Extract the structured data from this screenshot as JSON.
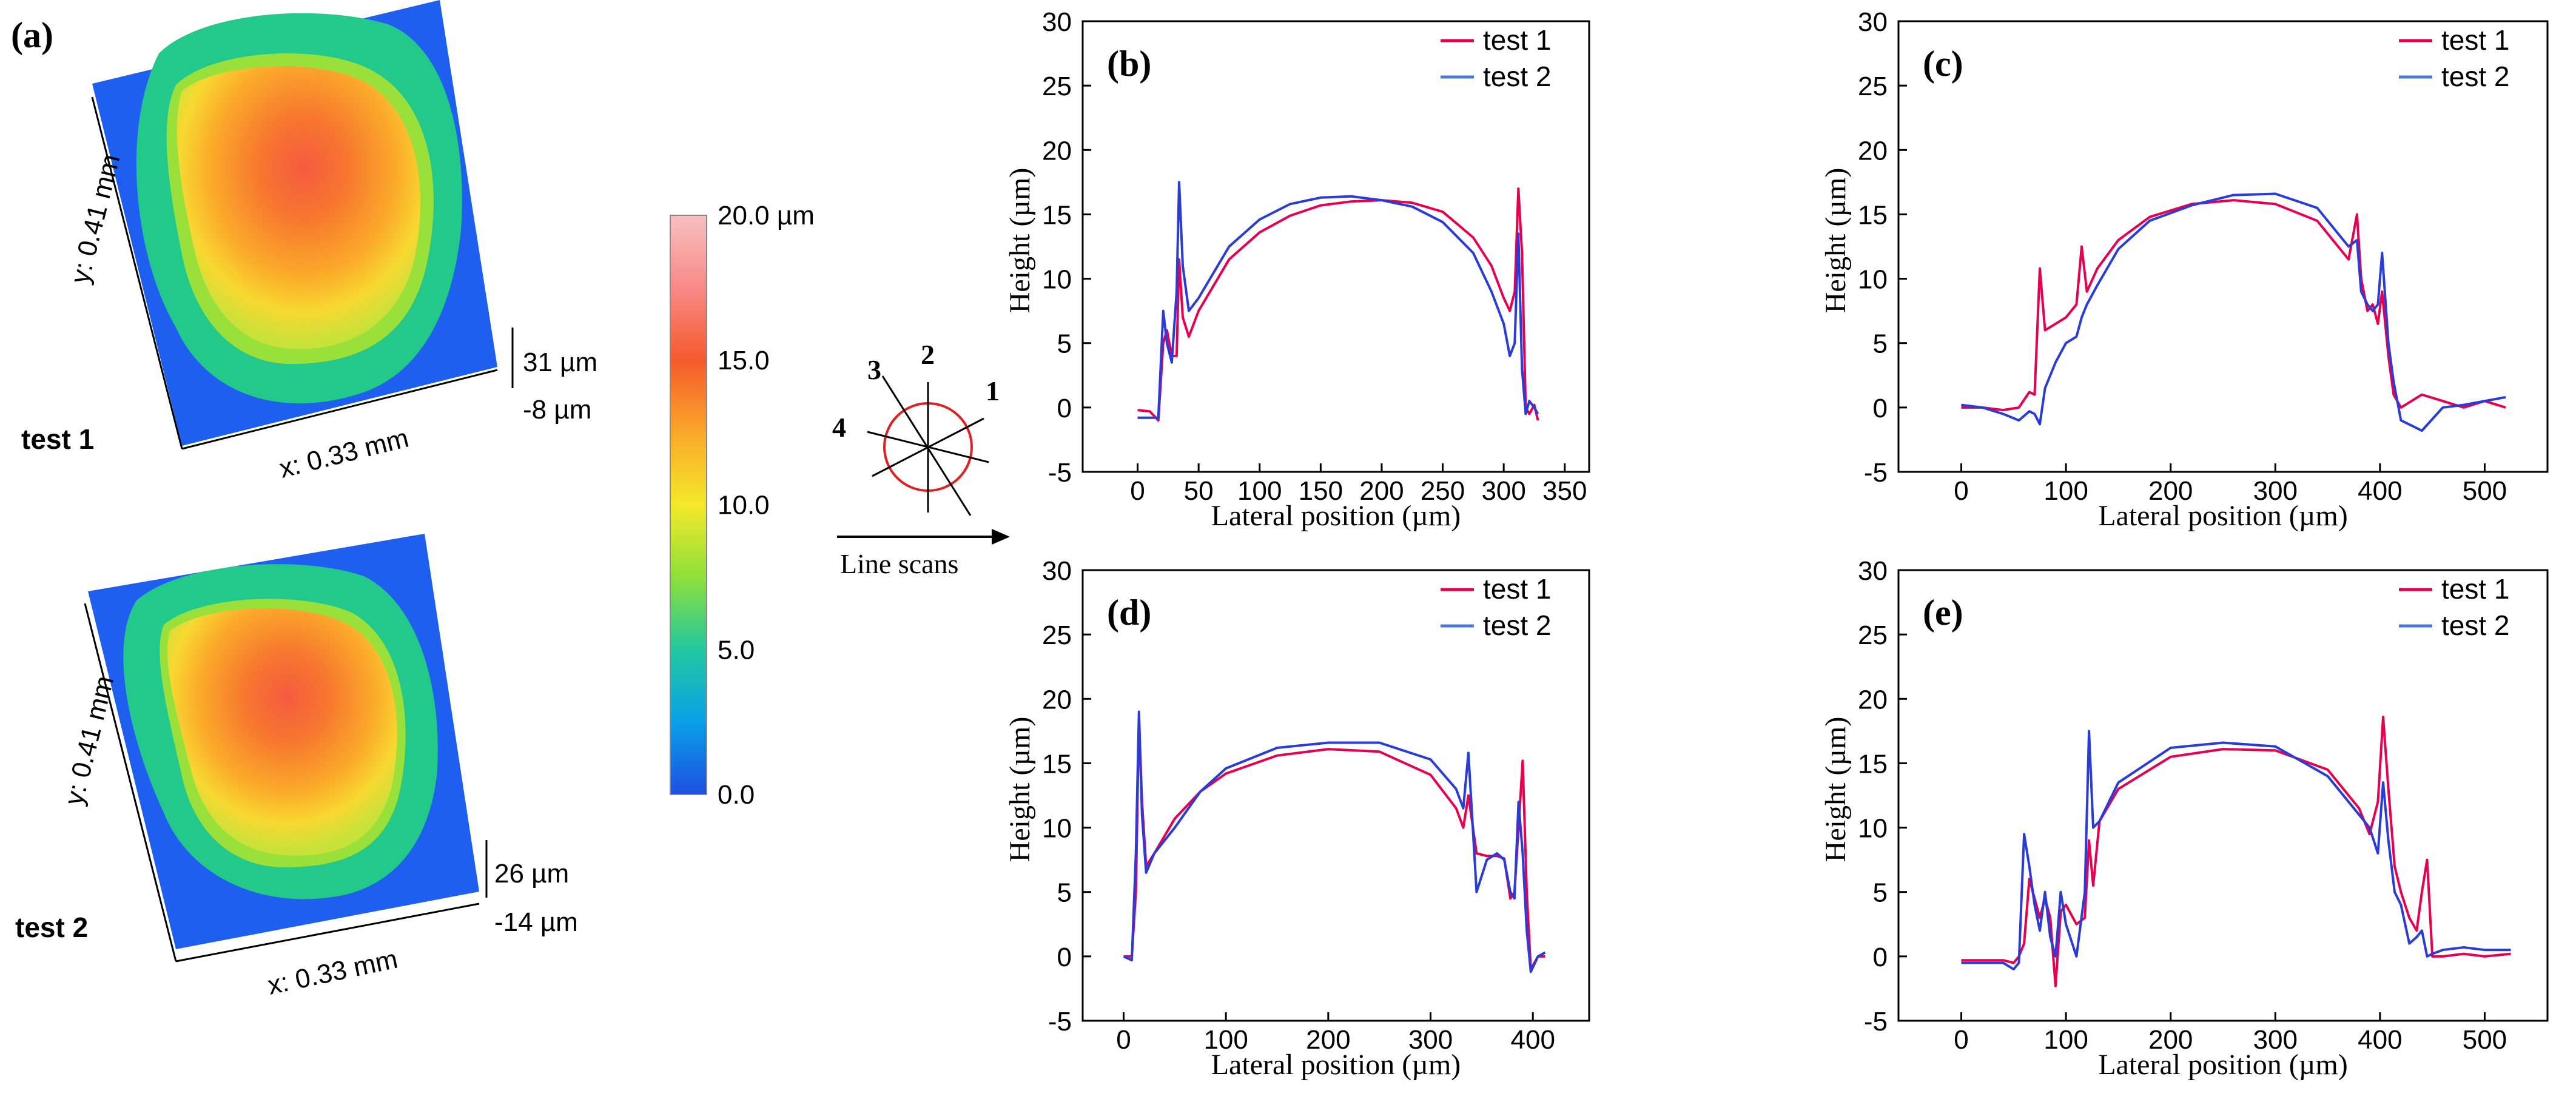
{
  "panel_a": {
    "label": "(a)",
    "maps": [
      {
        "name": "test 1",
        "x_axis": "x: 0.33 mm",
        "y_axis": "y: 0.41 mm",
        "z_max": "31 µm",
        "z_min": "-8 µm"
      },
      {
        "name": "test 2",
        "x_axis": "x: 0.33 mm",
        "y_axis": "y: 0.41 mm",
        "z_max": "26 µm",
        "z_min": "-14 µm"
      }
    ],
    "colorbar": {
      "ticks": [
        "20.0 µm",
        "15.0",
        "10.0",
        "5.0",
        "0.0"
      ],
      "values": [
        20,
        15,
        10,
        5,
        0
      ],
      "colors": [
        "#1d4fe0",
        "#0aa0e8",
        "#22c8a0",
        "#8fe03a",
        "#f4e82a",
        "#fba82a",
        "#f45a2c",
        "#f98a88",
        "#f6c0c0"
      ]
    }
  },
  "scan_diagram": {
    "lines": [
      "1",
      "2",
      "3",
      "4"
    ],
    "caption": "Line scans"
  },
  "chart_data": [
    {
      "type": "line",
      "label": "(b)",
      "xlabel": "Lateral position (µm)",
      "ylabel": "Height (µm)",
      "xlim": [
        -45,
        370
      ],
      "ylim": [
        -5,
        30
      ],
      "xticks": [
        0,
        50,
        100,
        150,
        200,
        250,
        300,
        350
      ],
      "yticks": [
        -5,
        0,
        5,
        10,
        15,
        20,
        25,
        30
      ],
      "legend": "top-right",
      "series": [
        {
          "name": "test 1",
          "color": "#e8004f",
          "x": [
            0,
            10,
            17,
            21,
            24,
            28,
            32,
            34,
            37,
            42,
            50,
            75,
            100,
            125,
            150,
            175,
            200,
            225,
            250,
            275,
            290,
            300,
            305,
            309,
            312,
            315,
            318,
            321,
            325,
            328
          ],
          "y": [
            -0.2,
            -0.3,
            -1,
            5,
            6,
            4,
            4,
            11.5,
            7,
            5.5,
            7.5,
            11.5,
            13.6,
            14.9,
            15.7,
            16,
            16.1,
            15.9,
            15.2,
            13.2,
            11,
            8.5,
            7.5,
            9,
            17,
            12,
            0,
            -0.5,
            0.2,
            -1
          ]
        },
        {
          "name": "test 2",
          "color": "#2a3cd8",
          "x": [
            0,
            10,
            17,
            21,
            24,
            28,
            32,
            34,
            37,
            42,
            50,
            75,
            100,
            125,
            150,
            175,
            200,
            225,
            250,
            275,
            290,
            300,
            305,
            309,
            312,
            315,
            318,
            321,
            325,
            328
          ],
          "y": [
            -0.8,
            -0.8,
            -0.8,
            7.5,
            5,
            3.5,
            9,
            17.5,
            11,
            7.5,
            8.5,
            12.5,
            14.6,
            15.8,
            16.3,
            16.4,
            16.1,
            15.6,
            14.4,
            12,
            9,
            6.5,
            4,
            5,
            13.5,
            3,
            -0.5,
            0.5,
            0,
            -0.5
          ]
        }
      ]
    },
    {
      "type": "line",
      "label": "(c)",
      "xlabel": "Lateral position (µm)",
      "ylabel": "Height (µm)",
      "xlim": [
        -60,
        560
      ],
      "ylim": [
        -5,
        30
      ],
      "xticks": [
        0,
        100,
        200,
        300,
        400,
        500
      ],
      "yticks": [
        -5,
        0,
        5,
        10,
        15,
        20,
        25,
        30
      ],
      "legend": "top-right",
      "series": [
        {
          "name": "test 1",
          "color": "#e8004f",
          "x": [
            0,
            20,
            40,
            55,
            65,
            70,
            75,
            80,
            90,
            100,
            110,
            115,
            120,
            130,
            150,
            180,
            220,
            260,
            300,
            340,
            370,
            378,
            382,
            388,
            393,
            398,
            402,
            408,
            413,
            420,
            440,
            460,
            480,
            500,
            520
          ],
          "y": [
            0,
            0,
            -0.2,
            0,
            1.2,
            1,
            10.8,
            6,
            6.5,
            7,
            8,
            12.5,
            9,
            10.8,
            13,
            14.8,
            15.8,
            16.1,
            15.8,
            14.5,
            11.5,
            15,
            10,
            7.5,
            8,
            6.5,
            9,
            4,
            1,
            0,
            1,
            0.5,
            0,
            0.5,
            0
          ]
        },
        {
          "name": "test 2",
          "color": "#2a3cd8",
          "x": [
            0,
            20,
            40,
            55,
            65,
            70,
            75,
            80,
            90,
            100,
            110,
            115,
            120,
            130,
            150,
            180,
            220,
            260,
            300,
            340,
            370,
            378,
            382,
            388,
            393,
            398,
            402,
            408,
            413,
            420,
            440,
            460,
            480,
            500,
            520
          ],
          "y": [
            0.2,
            0,
            -0.5,
            -1,
            -0.3,
            -0.5,
            -1.3,
            1.5,
            3.5,
            5,
            5.5,
            7,
            8,
            9.5,
            12.3,
            14.5,
            15.7,
            16.5,
            16.6,
            15.5,
            12.5,
            13,
            9,
            8,
            7.5,
            8,
            12,
            5,
            2,
            -1,
            -1.8,
            0,
            0.2,
            0.5,
            0.8
          ]
        }
      ]
    },
    {
      "type": "line",
      "label": "(d)",
      "xlabel": "Lateral position (µm)",
      "ylabel": "Height (µm)",
      "xlim": [
        -40,
        455
      ],
      "ylim": [
        -5,
        30
      ],
      "xticks": [
        0,
        100,
        200,
        300,
        400
      ],
      "yticks": [
        -5,
        0,
        5,
        10,
        15,
        20,
        25,
        30
      ],
      "legend": "top-right",
      "series": [
        {
          "name": "test 1",
          "color": "#e8004f",
          "x": [
            0,
            8,
            12,
            15,
            18,
            22,
            30,
            50,
            75,
            100,
            150,
            200,
            250,
            300,
            325,
            332,
            337,
            345,
            355,
            365,
            372,
            378,
            382,
            386,
            390,
            394,
            398,
            405,
            412
          ],
          "y": [
            0,
            0,
            5,
            18.5,
            12,
            7,
            8,
            10.7,
            12.8,
            14.2,
            15.6,
            16.1,
            15.9,
            14.1,
            11.5,
            10,
            12.5,
            8,
            7.8,
            7.8,
            7.6,
            4.5,
            5,
            10,
            15.2,
            5,
            -1,
            0,
            0
          ]
        },
        {
          "name": "test 2",
          "color": "#2a3cd8",
          "x": [
            0,
            8,
            12,
            15,
            18,
            22,
            30,
            50,
            75,
            100,
            150,
            200,
            250,
            300,
            325,
            332,
            337,
            345,
            355,
            365,
            372,
            378,
            382,
            386,
            390,
            394,
            398,
            405,
            412
          ],
          "y": [
            0,
            -0.3,
            8,
            19,
            11,
            6.5,
            8,
            10,
            12.8,
            14.6,
            16.2,
            16.6,
            16.6,
            15.3,
            13,
            11.5,
            15.8,
            5,
            7.5,
            8,
            7.5,
            5,
            4.5,
            12,
            8,
            2,
            -1.2,
            0,
            0.3
          ]
        }
      ]
    },
    {
      "type": "line",
      "label": "(e)",
      "xlabel": "Lateral position (µm)",
      "ylabel": "Height (µm)",
      "xlim": [
        -60,
        560
      ],
      "ylim": [
        -5,
        30
      ],
      "xticks": [
        0,
        100,
        200,
        300,
        400,
        500
      ],
      "yticks": [
        -5,
        0,
        5,
        10,
        15,
        20,
        25,
        30
      ],
      "legend": "top-right",
      "series": [
        {
          "name": "test 1",
          "color": "#e8004f",
          "x": [
            0,
            20,
            40,
            50,
            55,
            60,
            65,
            70,
            75,
            80,
            85,
            90,
            95,
            100,
            110,
            118,
            122,
            126,
            132,
            150,
            200,
            250,
            300,
            350,
            380,
            390,
            398,
            403,
            408,
            414,
            420,
            428,
            435,
            440,
            445,
            450,
            460,
            480,
            500,
            525
          ],
          "y": [
            -0.3,
            -0.3,
            -0.3,
            -0.5,
            0,
            1,
            6,
            4.5,
            3,
            4.5,
            3,
            -2.3,
            3.5,
            4,
            2.5,
            3,
            9,
            5.5,
            10.5,
            13,
            15.5,
            16.1,
            16,
            14.5,
            11.5,
            9.5,
            12,
            18.6,
            13,
            7,
            5,
            3,
            2,
            5,
            7.5,
            0,
            0,
            0.2,
            0,
            0.2
          ]
        },
        {
          "name": "test 2",
          "color": "#2a3cd8",
          "x": [
            0,
            20,
            40,
            50,
            55,
            60,
            65,
            70,
            75,
            80,
            85,
            90,
            95,
            100,
            110,
            118,
            122,
            126,
            132,
            150,
            200,
            250,
            300,
            350,
            380,
            390,
            398,
            403,
            408,
            414,
            420,
            428,
            435,
            440,
            445,
            450,
            460,
            480,
            500,
            525
          ],
          "y": [
            -0.5,
            -0.5,
            -0.5,
            -1,
            -0.5,
            9.5,
            7,
            4,
            2,
            5,
            1.5,
            0,
            5,
            2.5,
            0,
            5,
            17.5,
            10,
            10.5,
            13.5,
            16.2,
            16.6,
            16.3,
            14,
            11,
            10,
            8,
            13.5,
            9,
            5,
            4,
            1,
            1.5,
            2,
            0,
            0.2,
            0.5,
            0.7,
            0.5,
            0.5
          ]
        }
      ]
    }
  ]
}
